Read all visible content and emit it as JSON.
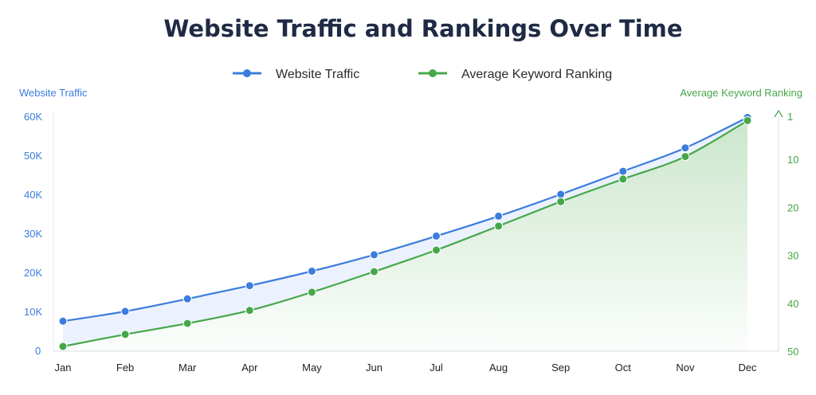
{
  "colors": {
    "traffic": "#3b7ddd",
    "ranking": "#46a74a",
    "traffic_fill": "#e9f0fd",
    "title": "#1f2a44",
    "axis_line": "#d8dde6"
  },
  "chart_data": {
    "type": "line",
    "title": "Website Traffic and Rankings Over Time",
    "categories": [
      "Jan",
      "Feb",
      "Mar",
      "Apr",
      "May",
      "Jun",
      "Jul",
      "Aug",
      "Sep",
      "Oct",
      "Nov",
      "Dec"
    ],
    "y_left": {
      "label": "Website Traffic",
      "ticks": [
        "0",
        "10K",
        "20K",
        "30K",
        "40K",
        "50K",
        "60K"
      ],
      "range": [
        0,
        60000
      ]
    },
    "y_right": {
      "label": "Average Keyword Ranking",
      "ticks": [
        "1",
        "10",
        "20",
        "30",
        "40",
        "50"
      ],
      "range": [
        50,
        1
      ],
      "inverted": true
    },
    "series": [
      {
        "name": "Website Traffic",
        "axis": "left",
        "values": [
          7500,
          10000,
          13200,
          16600,
          20300,
          24500,
          29300,
          34400,
          40000,
          45900,
          51900,
          59700
        ]
      },
      {
        "name": "Average Keyword Ranking",
        "axis": "right",
        "values": [
          49,
          46.5,
          44.2,
          41.5,
          37.7,
          33.4,
          28.9,
          23.9,
          18.8,
          14.1,
          9.4,
          1.9
        ]
      }
    ],
    "grid": false,
    "legend_position": "top-center"
  }
}
